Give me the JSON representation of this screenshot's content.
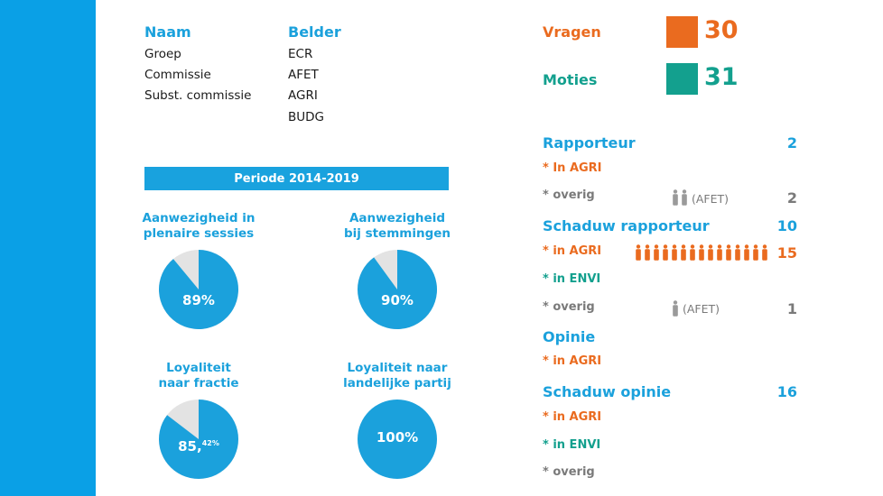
{
  "profile": {
    "labels_header": "Naam",
    "values_header": "Belder",
    "labels": [
      "Groep",
      "Commissie",
      "Subst. commissie"
    ],
    "values": [
      "ECR",
      "AFET",
      "AGRI",
      "BUDG"
    ]
  },
  "period": "Periode 2014-2019",
  "metrics": [
    {
      "title": [
        "Aanwezigheid in",
        "plenaire sessies"
      ],
      "label": "89%",
      "fraction": 0.89
    },
    {
      "title": [
        "Aanwezigheid",
        "bij stemmingen"
      ],
      "label": "90%",
      "fraction": 0.9
    },
    {
      "title": [
        "Loyaliteit",
        "naar fractie"
      ],
      "label_main": "85,",
      "label_sup": "42%",
      "fraction": 0.8542
    },
    {
      "title": [
        "Loyaliteit naar",
        "landelijke partij"
      ],
      "label": "100%",
      "fraction": 1.0
    }
  ],
  "colors": {
    "blue": "#1ba1dc",
    "pie_bg": "#e3e3e3",
    "orange": "#ea6b1f",
    "teal": "#13a08e",
    "gray": "#7a7a7a"
  },
  "counts": {
    "vragen": {
      "label": "Vragen",
      "value": "30"
    },
    "moties": {
      "label": "Moties",
      "value": "31"
    }
  },
  "rapporteur": {
    "label": "Rapporteur",
    "value": "2",
    "in_agri": "* In AGRI",
    "overig": {
      "label": "* overig",
      "figures": 2,
      "note": "(AFET)",
      "value": "2"
    }
  },
  "schaduw_rapporteur": {
    "label": "Schaduw rapporteur",
    "value": "10",
    "in_agri": {
      "label": "* in AGRI",
      "figures": 15,
      "value": "15"
    },
    "in_envi": "* in ENVI",
    "overig": {
      "label": "* overig",
      "figures": 1,
      "note": "(AFET)",
      "value": "1"
    }
  },
  "opinie": {
    "label": "Opinie",
    "in_agri": "* in AGRI"
  },
  "schaduw_opinie": {
    "label": "Schaduw opinie",
    "value": "16",
    "in_agri": "* in AGRI",
    "in_envi": "* in ENVI",
    "overig": "* overig"
  }
}
